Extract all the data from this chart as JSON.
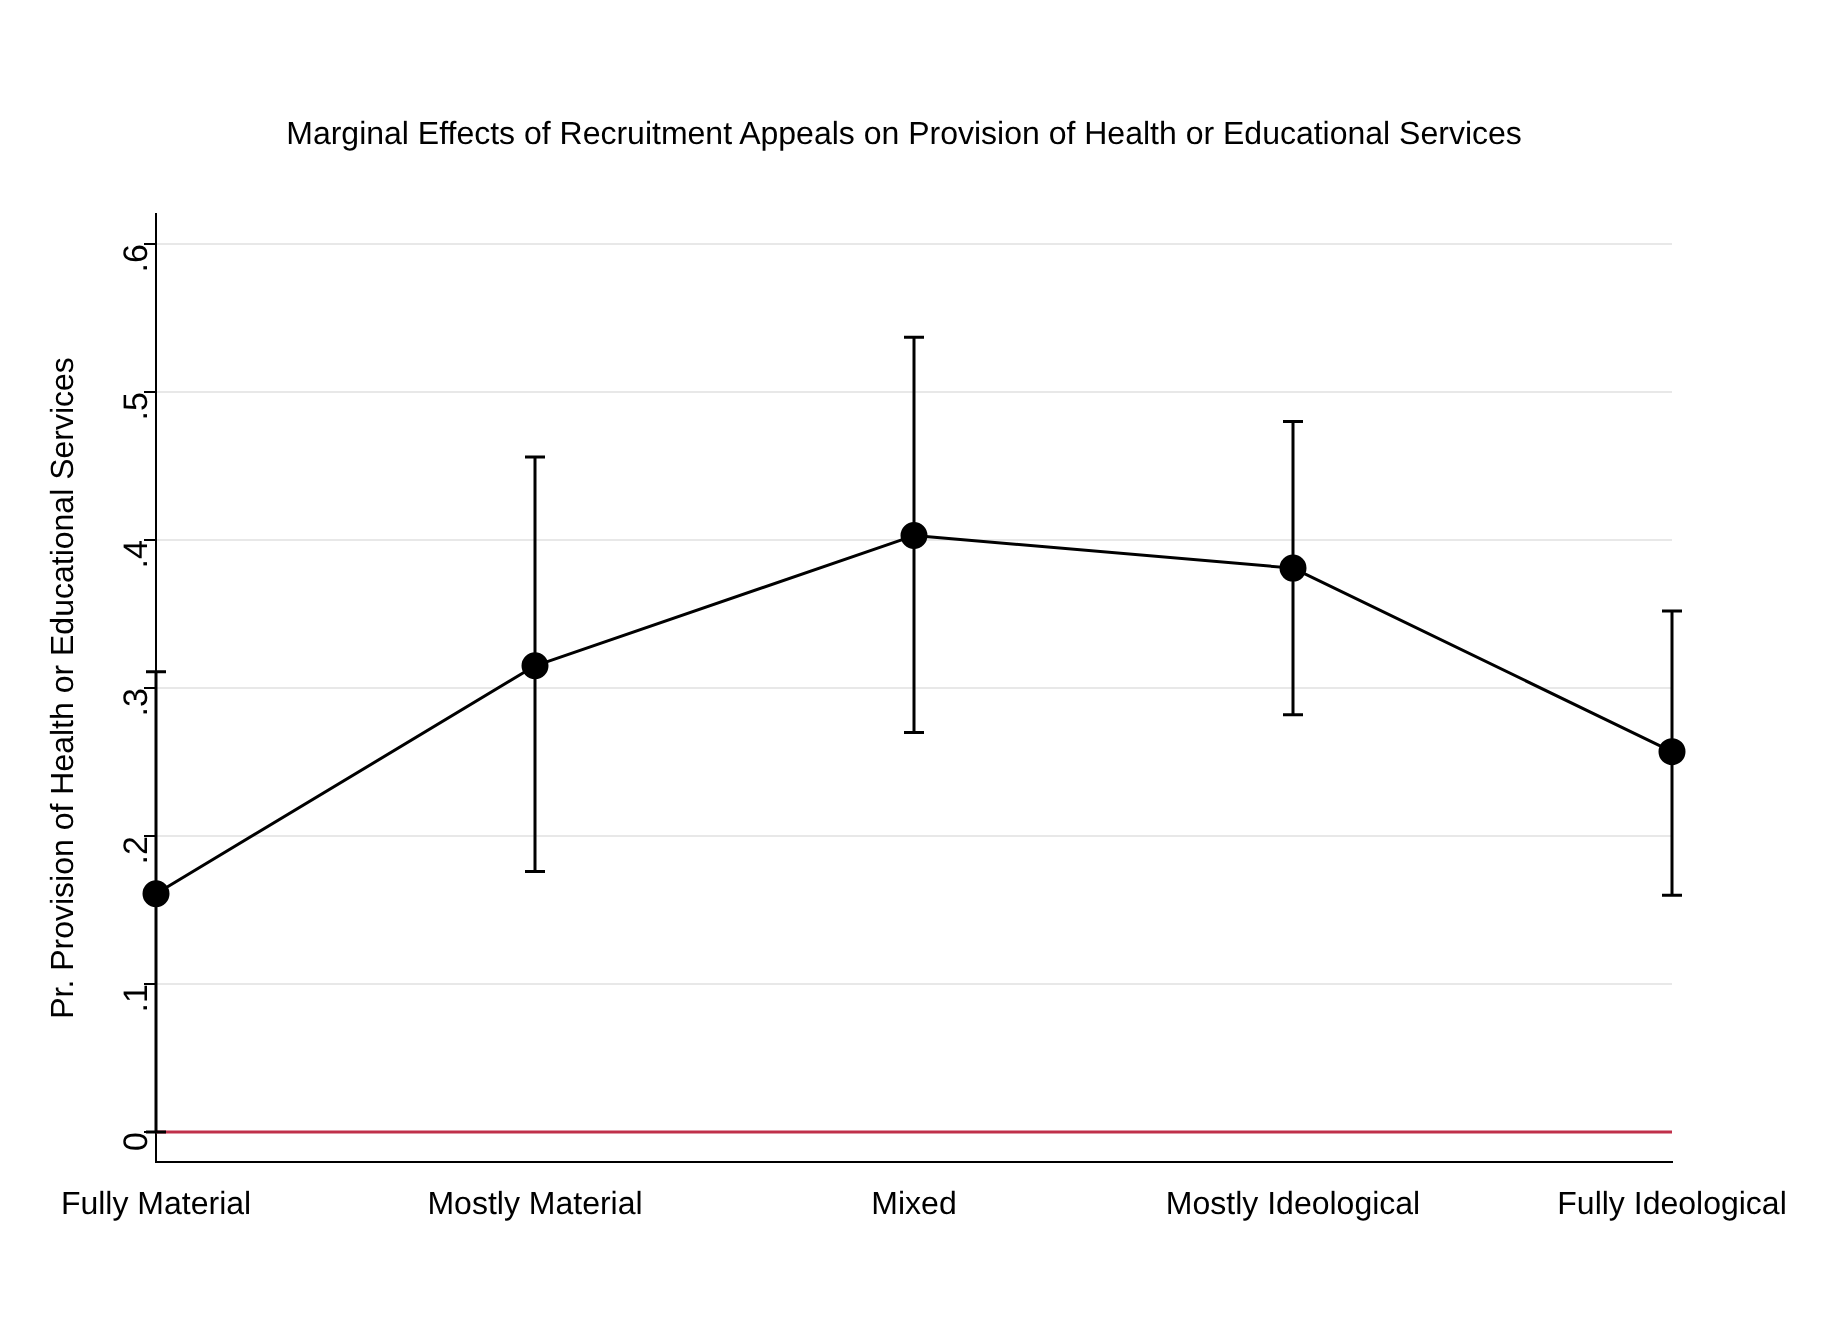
{
  "chart_data": {
    "type": "line",
    "title": "Marginal Effects of Recruitment Appeals on Provision of Health or Educational Services",
    "ylabel": "Pr. Provision of Health or Educational Services",
    "categories": [
      "Fully Material",
      "Mostly Material",
      "Mixed",
      "Mostly Ideological",
      "Fully Ideological"
    ],
    "series": [
      {
        "color": "#000000",
        "values": [
          0.161,
          0.315,
          0.403,
          0.381,
          0.257
        ],
        "errors": [
          [
            0,
            0.311
          ],
          [
            0.176,
            0.456
          ],
          [
            0.27,
            0.537
          ],
          [
            0.282,
            0.48
          ],
          [
            0.16,
            0.352
          ]
        ]
      }
    ],
    "ylim": [
      -0.02,
      0.62
    ],
    "yticks": [
      {
        "value": 0,
        "label": "0"
      },
      {
        "value": 0.1,
        "label": ".1"
      },
      {
        "value": 0.2,
        "label": ".2"
      },
      {
        "value": 0.3,
        "label": ".3"
      },
      {
        "value": 0.4,
        "label": ".4"
      },
      {
        "value": 0.5,
        "label": ".5"
      },
      {
        "value": 0.6,
        "label": ".6"
      }
    ],
    "ref_lines": [
      {
        "axis": "y",
        "value": 0,
        "color": "#c0304a"
      }
    ],
    "grid": "y",
    "legend": false,
    "marker": "circle",
    "line_style": "solid"
  }
}
